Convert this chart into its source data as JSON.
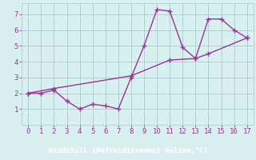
{
  "xlabel": "Windchill (Refroidissement éolien,°C)",
  "line1_x": [
    0,
    1,
    2,
    3,
    4,
    5,
    6,
    7,
    8,
    9,
    10,
    11,
    12,
    13,
    14,
    15,
    16,
    17
  ],
  "line1_y": [
    2.0,
    2.0,
    2.2,
    1.5,
    1.0,
    1.3,
    1.2,
    1.0,
    3.0,
    5.0,
    7.3,
    7.2,
    4.9,
    4.2,
    6.7,
    6.7,
    6.0,
    5.5
  ],
  "line2_x": [
    0,
    2,
    8,
    11,
    13,
    14,
    17
  ],
  "line2_y": [
    2.0,
    2.3,
    3.1,
    4.1,
    4.2,
    4.5,
    5.5
  ],
  "line_color": "#993399",
  "bg_color": "#d8f0f0",
  "grid_color": "#b0d0d0",
  "xlabel_bg": "#7b3f7b",
  "xlim": [
    -0.5,
    17.5
  ],
  "ylim": [
    0,
    7.7
  ],
  "xticks": [
    0,
    1,
    2,
    3,
    4,
    5,
    6,
    7,
    8,
    9,
    10,
    11,
    12,
    13,
    14,
    15,
    16,
    17
  ],
  "yticks": [
    1,
    2,
    3,
    4,
    5,
    6,
    7
  ],
  "marker": "+",
  "markersize": 4,
  "linewidth": 1.0,
  "tick_labelsize": 6.5,
  "xlabel_fontsize": 6.5
}
